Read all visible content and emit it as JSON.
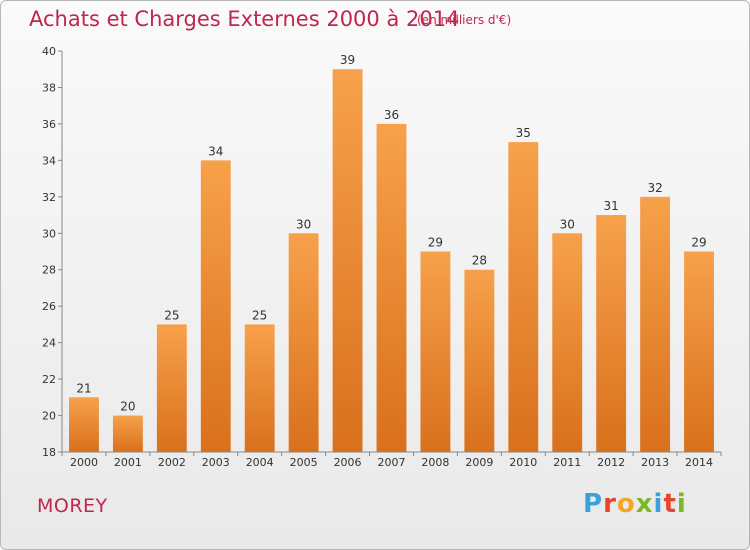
{
  "title": "Achats et Charges Externes 2000 à 2014",
  "subtitle": "(en milliers d'€)",
  "commune": "MOREY",
  "logo": {
    "letters": [
      "P",
      "r",
      "o",
      "x",
      "i",
      "t",
      "i"
    ],
    "colors": [
      "#3ba1d8",
      "#e8432d",
      "#f5a623",
      "#7ab829",
      "#3ba1d8",
      "#e8432d",
      "#7ab829"
    ]
  },
  "chart_data": {
    "type": "bar",
    "categories": [
      "2000",
      "2001",
      "2002",
      "2003",
      "2004",
      "2005",
      "2006",
      "2007",
      "2008",
      "2009",
      "2010",
      "2011",
      "2012",
      "2013",
      "2014"
    ],
    "values": [
      21,
      20,
      25,
      34,
      25,
      30,
      39,
      36,
      29,
      28,
      35,
      30,
      31,
      32,
      29
    ],
    "ylim": [
      18,
      40
    ],
    "yticks": [
      18,
      20,
      22,
      24,
      26,
      28,
      30,
      32,
      34,
      36,
      38,
      40
    ],
    "bar_color_top": "#f7a14b",
    "bar_color_bottom": "#d9701c",
    "grid": false,
    "data_labels": true
  }
}
